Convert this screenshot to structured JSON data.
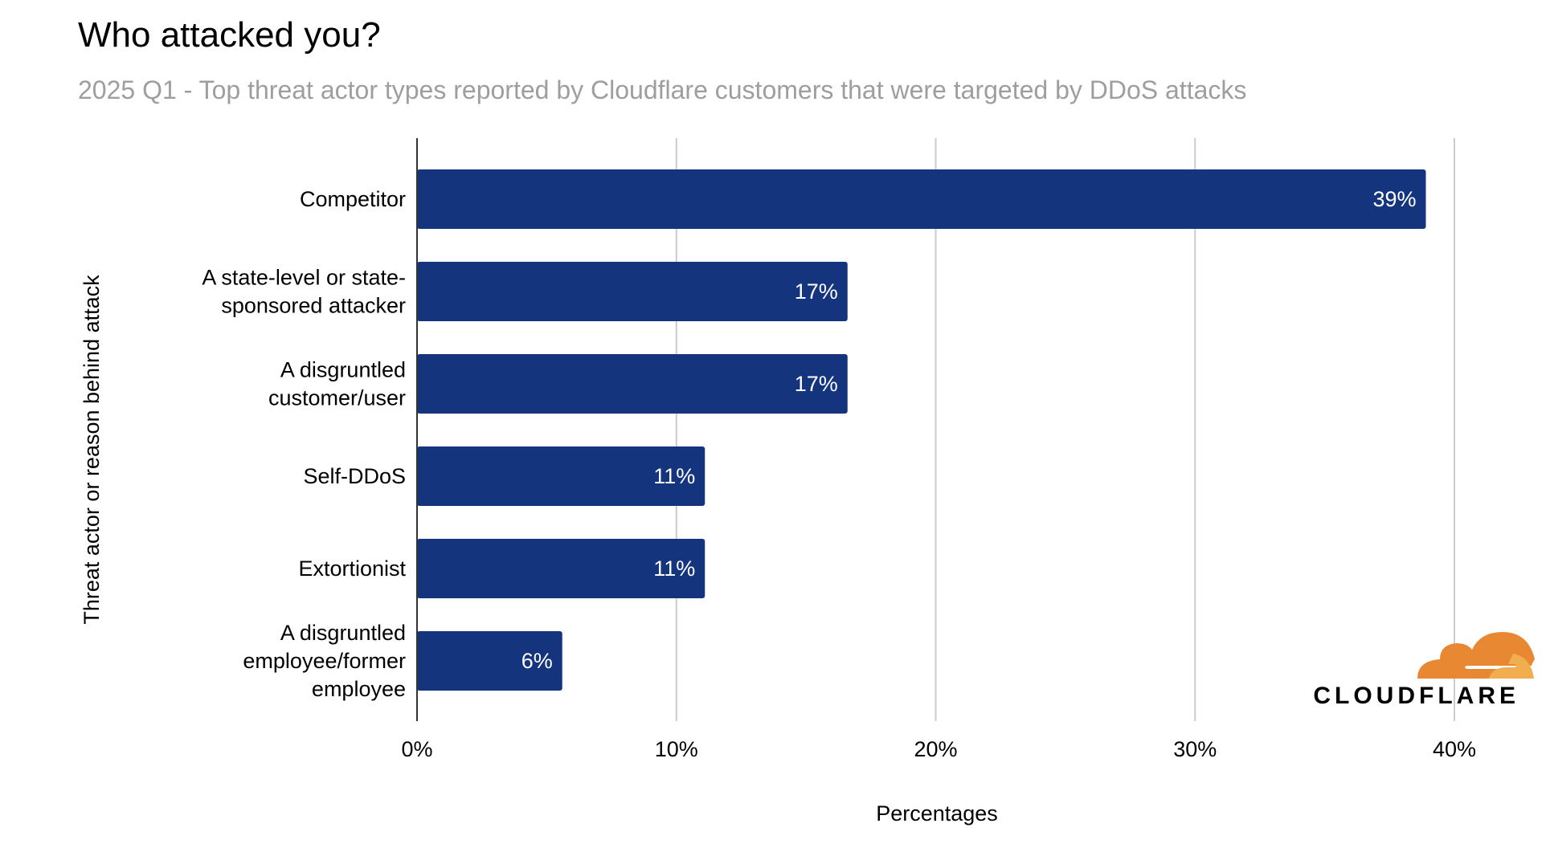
{
  "chart_data": {
    "type": "bar",
    "orientation": "horizontal",
    "title": "Who attacked you?",
    "subtitle": "2025 Q1 - Top threat actor types reported by Cloudflare customers that were targeted by DDoS attacks",
    "xlabel": "Percentages",
    "ylabel": "Threat actor or reason behind attack",
    "categories": [
      [
        "Competitor"
      ],
      [
        "A state-level or state-",
        "sponsored attacker"
      ],
      [
        "A disgruntled",
        "customer/user"
      ],
      [
        "Self-DDoS"
      ],
      [
        "Extortionist"
      ],
      [
        "A disgruntled",
        "employee/former",
        "employee"
      ]
    ],
    "values": [
      38.9,
      16.6,
      16.6,
      11.1,
      11.1,
      5.6
    ],
    "data_labels": [
      "39%",
      "17%",
      "17%",
      "11%",
      "11%",
      "6%"
    ],
    "xlim": [
      0,
      40
    ],
    "x_ticks": [
      0,
      10,
      20,
      30,
      40
    ],
    "x_tick_labels": [
      "0%",
      "10%",
      "20%",
      "30%",
      "40%"
    ],
    "grid": true,
    "bar_color": "#14357d",
    "grid_color": "#cccccc"
  },
  "logo": {
    "text": "CLOUDFLARE",
    "orange": "#e88833",
    "light_orange": "#f0ae4f"
  }
}
